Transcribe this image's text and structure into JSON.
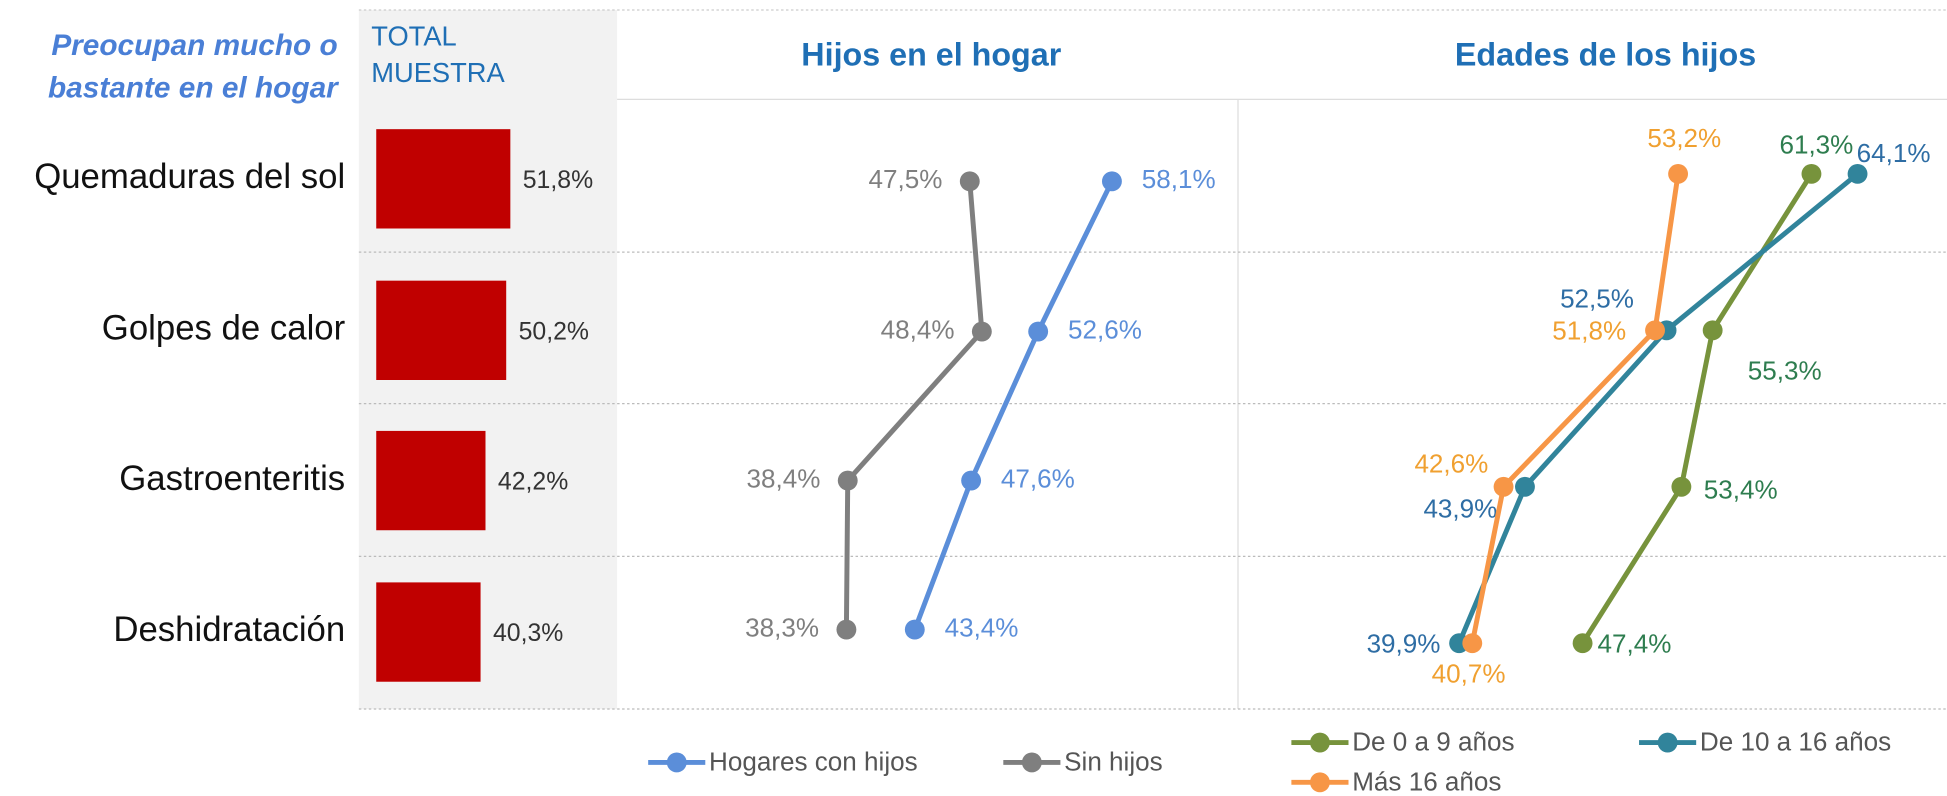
{
  "heading": [
    "Preocupan mucho o",
    "bastante  en el hogar"
  ],
  "chart_data": [
    {
      "type": "bar",
      "title": [
        "TOTAL",
        "MUESTRA"
      ],
      "categories": [
        "Quemaduras del sol",
        "Golpes de calor",
        "Gastroenteritis",
        "Deshidratación"
      ],
      "values": [
        51.8,
        50.2,
        42.2,
        40.3
      ],
      "value_labels": [
        "51,8%",
        "50,2%",
        "42,2%",
        "40,3%"
      ],
      "color": "#c00000"
    },
    {
      "type": "line",
      "title": "Hijos en el hogar",
      "series": [
        {
          "name": "Hogares con hijos",
          "color": "#5b8ed9",
          "values": [
            58.1,
            52.6,
            47.6,
            43.4
          ],
          "value_labels": [
            "58,1%",
            "52,6%",
            "47,6%",
            "43,4%"
          ]
        },
        {
          "name": "Sin hijos",
          "color": "#7f7f7f",
          "values": [
            47.5,
            48.4,
            38.4,
            38.3
          ],
          "value_labels": [
            "47,5%",
            "48,4%",
            "38,4%",
            "38,3%"
          ]
        }
      ]
    },
    {
      "type": "line",
      "title": "Edades de los hijos",
      "series": [
        {
          "name": "De 0 a 9 años",
          "color": "#77933c",
          "values": [
            61.3,
            55.3,
            53.4,
            47.4
          ],
          "value_labels": [
            "61,3%",
            "55,3%",
            "53,4%",
            "47,4%"
          ]
        },
        {
          "name": "De 10 a 16 años",
          "color": "#31849b",
          "values": [
            64.1,
            52.5,
            43.9,
            39.9
          ],
          "value_labels": [
            "64,1%",
            "52,5%",
            "43,9%",
            "39,9%"
          ]
        },
        {
          "name": "Más 16 años",
          "color": "#f79646",
          "values": [
            53.2,
            51.8,
            42.6,
            40.7
          ],
          "value_labels": [
            "53,2%",
            "51,8%",
            "42,6%",
            "40,7%"
          ]
        }
      ]
    }
  ]
}
